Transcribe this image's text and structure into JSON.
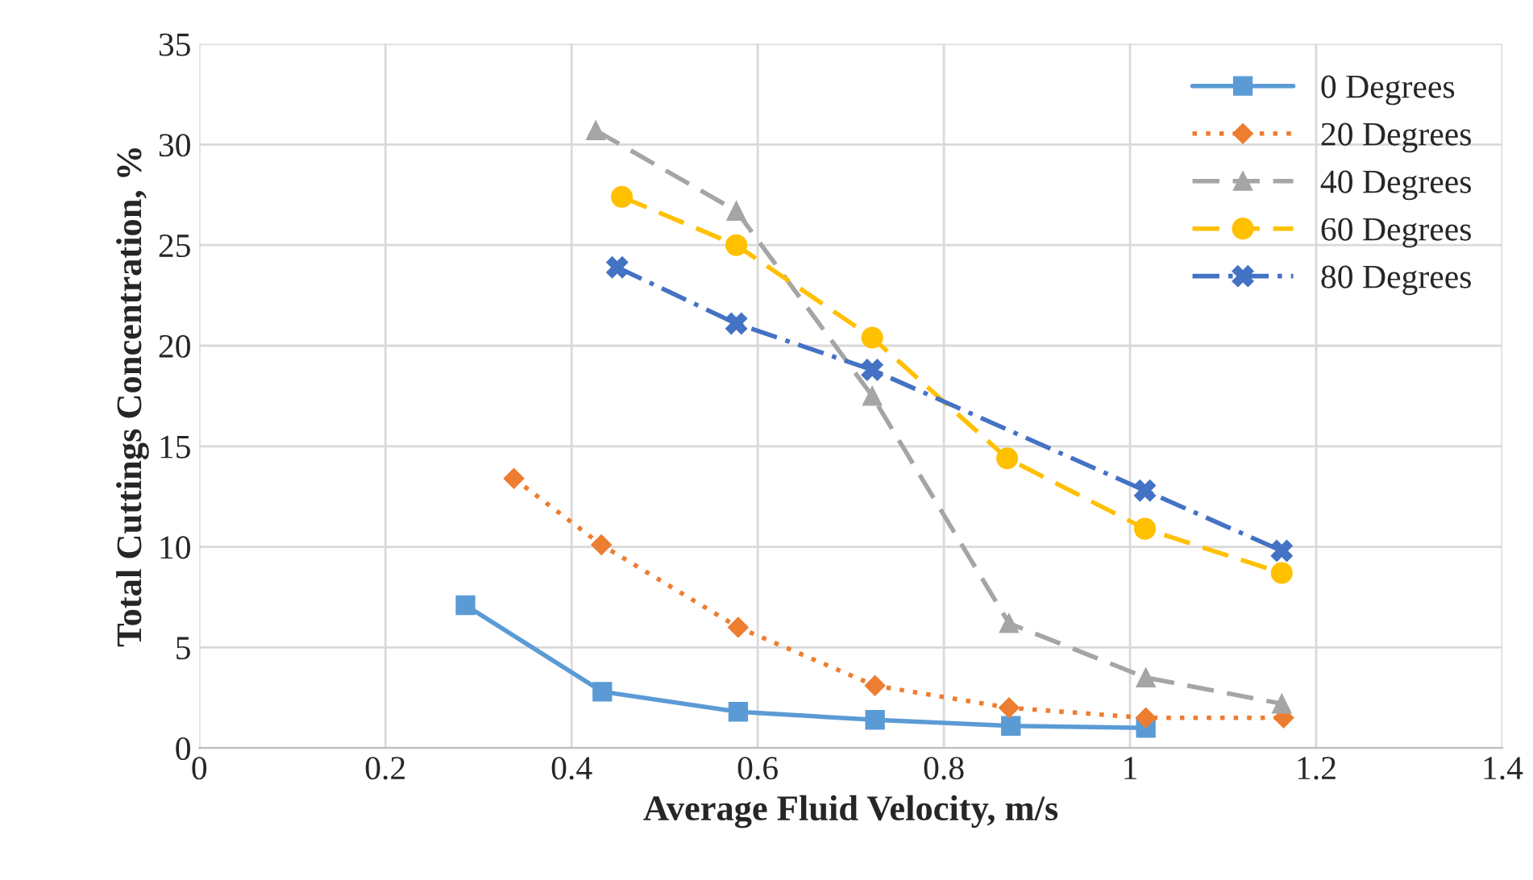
{
  "chart_data": {
    "type": "line",
    "xlabel": "Average Fluid Velocity, m/s",
    "ylabel": "Total Cuttings Concentration, %",
    "xlim": [
      0,
      1.4
    ],
    "xticks": [
      0,
      0.2,
      0.4,
      0.6,
      0.8,
      1,
      1.2,
      1.4
    ],
    "ylim": [
      0,
      35
    ],
    "yticks": [
      0,
      5,
      10,
      15,
      20,
      25,
      30,
      35
    ],
    "grid": true,
    "legend": "top right",
    "series": [
      {
        "name": "0 Degrees",
        "color": "#5b9bd5",
        "marker": "square",
        "line_style": "solid",
        "x": [
          0.286,
          0.433,
          0.579,
          0.726,
          0.872,
          1.017
        ],
        "values": [
          7.1,
          2.8,
          1.8,
          1.4,
          1.1,
          1.0
        ]
      },
      {
        "name": "20 Degrees",
        "color": "#ed7d31",
        "marker": "diamond",
        "line_style": "dotted",
        "x": [
          0.338,
          0.432,
          0.579,
          0.726,
          0.87,
          1.017,
          1.165
        ],
        "values": [
          13.4,
          10.1,
          6.0,
          3.1,
          2.0,
          1.5,
          1.5
        ]
      },
      {
        "name": "40 Degrees",
        "color": "#a5a5a5",
        "marker": "triangle",
        "line_style": "dashed",
        "x": [
          0.426,
          0.577,
          0.723,
          0.87,
          1.017,
          1.163
        ],
        "values": [
          30.7,
          26.7,
          17.5,
          6.2,
          3.5,
          2.2
        ]
      },
      {
        "name": "60 Degrees",
        "color": "#ffc000",
        "marker": "circle",
        "line_style": "dashed",
        "x": [
          0.454,
          0.577,
          0.723,
          0.868,
          1.016,
          1.163
        ],
        "values": [
          27.4,
          25.0,
          20.4,
          14.4,
          10.9,
          8.7
        ]
      },
      {
        "name": "80 Degrees",
        "color": "#4472c4",
        "marker": "cross",
        "line_style": "dashdot",
        "x": [
          0.449,
          0.577,
          0.723,
          1.016,
          1.163
        ],
        "values": [
          23.9,
          21.1,
          18.8,
          12.8,
          9.8
        ]
      }
    ]
  }
}
